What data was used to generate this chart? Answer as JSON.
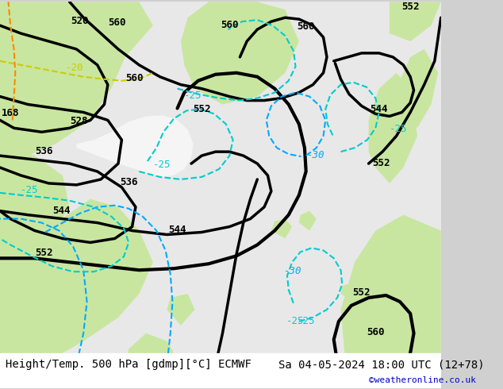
{
  "title_left": "Height/Temp. 500 hPa [gdmp][°C] ECMWF",
  "title_right": "Sa 04-05-2024 18:00 UTC (12+78)",
  "credit": "©weatheronline.co.uk",
  "bg_color": "#d0d0d0",
  "land_color_light": "#c8e6a0",
  "land_color_medium": "#b8d890",
  "sea_color": "#e8e8e8",
  "contour_color_black": "#000000",
  "contour_color_blue": "#00aaff",
  "contour_color_cyan": "#00cccc",
  "contour_color_yellow": "#cccc00",
  "contour_color_orange": "#ff8800",
  "fig_width": 6.34,
  "fig_height": 4.9,
  "dpi": 100
}
